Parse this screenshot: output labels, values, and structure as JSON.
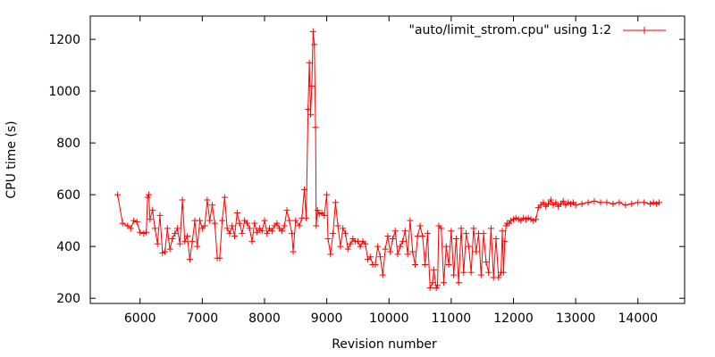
{
  "chart_data": {
    "type": "line",
    "xlabel": "Revision number",
    "ylabel": "CPU time (s)",
    "xlim": [
      5200,
      14750
    ],
    "ylim": [
      180,
      1290
    ],
    "xticks": [
      6000,
      7000,
      8000,
      9000,
      10000,
      11000,
      12000,
      13000,
      14000
    ],
    "yticks": [
      200,
      400,
      600,
      800,
      1000,
      1200
    ],
    "grid": false,
    "legend_position": "top-right",
    "colors": {
      "series": "#ff0000",
      "axis": "#000000",
      "background": "#ffffff"
    },
    "series": [
      {
        "name": "\"auto/limit_strom.cpu\" using 1:2",
        "marker": "plus",
        "points": [
          [
            5640,
            600
          ],
          [
            5720,
            490
          ],
          [
            5800,
            480
          ],
          [
            5850,
            470
          ],
          [
            5900,
            500
          ],
          [
            5950,
            495
          ],
          [
            6000,
            455
          ],
          [
            6060,
            450
          ],
          [
            6100,
            455
          ],
          [
            6120,
            590
          ],
          [
            6140,
            600
          ],
          [
            6160,
            505
          ],
          [
            6200,
            540
          ],
          [
            6240,
            470
          ],
          [
            6280,
            410
          ],
          [
            6320,
            520
          ],
          [
            6360,
            375
          ],
          [
            6400,
            380
          ],
          [
            6440,
            470
          ],
          [
            6480,
            390
          ],
          [
            6520,
            430
          ],
          [
            6560,
            450
          ],
          [
            6600,
            470
          ],
          [
            6640,
            410
          ],
          [
            6680,
            580
          ],
          [
            6720,
            420
          ],
          [
            6760,
            440
          ],
          [
            6800,
            350
          ],
          [
            6840,
            420
          ],
          [
            6880,
            500
          ],
          [
            6920,
            400
          ],
          [
            6960,
            500
          ],
          [
            7000,
            470
          ],
          [
            7040,
            480
          ],
          [
            7080,
            580
          ],
          [
            7120,
            500
          ],
          [
            7160,
            560
          ],
          [
            7200,
            490
          ],
          [
            7240,
            355
          ],
          [
            7280,
            355
          ],
          [
            7320,
            500
          ],
          [
            7360,
            590
          ],
          [
            7400,
            470
          ],
          [
            7440,
            450
          ],
          [
            7480,
            480
          ],
          [
            7520,
            440
          ],
          [
            7560,
            530
          ],
          [
            7600,
            490
          ],
          [
            7640,
            450
          ],
          [
            7680,
            500
          ],
          [
            7720,
            490
          ],
          [
            7760,
            470
          ],
          [
            7800,
            420
          ],
          [
            7840,
            490
          ],
          [
            7880,
            455
          ],
          [
            7920,
            470
          ],
          [
            7960,
            460
          ],
          [
            8000,
            500
          ],
          [
            8040,
            450
          ],
          [
            8080,
            470
          ],
          [
            8120,
            460
          ],
          [
            8160,
            480
          ],
          [
            8200,
            490
          ],
          [
            8240,
            470
          ],
          [
            8280,
            460
          ],
          [
            8320,
            480
          ],
          [
            8360,
            540
          ],
          [
            8400,
            500
          ],
          [
            8440,
            450
          ],
          [
            8460,
            380
          ],
          [
            8500,
            500
          ],
          [
            8560,
            480
          ],
          [
            8600,
            510
          ],
          [
            8640,
            620
          ],
          [
            8670,
            510
          ],
          [
            8700,
            930
          ],
          [
            8720,
            1110
          ],
          [
            8740,
            910
          ],
          [
            8760,
            1020
          ],
          [
            8780,
            1230
          ],
          [
            8800,
            1180
          ],
          [
            8820,
            860
          ],
          [
            8830,
            480
          ],
          [
            8850,
            540
          ],
          [
            8880,
            525
          ],
          [
            8920,
            530
          ],
          [
            8960,
            520
          ],
          [
            9000,
            600
          ],
          [
            9020,
            430
          ],
          [
            9060,
            370
          ],
          [
            9100,
            450
          ],
          [
            9140,
            570
          ],
          [
            9180,
            480
          ],
          [
            9220,
            400
          ],
          [
            9260,
            470
          ],
          [
            9300,
            450
          ],
          [
            9340,
            390
          ],
          [
            9380,
            410
          ],
          [
            9420,
            430
          ],
          [
            9460,
            420
          ],
          [
            9500,
            420
          ],
          [
            9540,
            400
          ],
          [
            9580,
            420
          ],
          [
            9620,
            410
          ],
          [
            9660,
            350
          ],
          [
            9700,
            360
          ],
          [
            9740,
            330
          ],
          [
            9780,
            330
          ],
          [
            9820,
            400
          ],
          [
            9860,
            360
          ],
          [
            9900,
            290
          ],
          [
            9940,
            390
          ],
          [
            9980,
            440
          ],
          [
            10020,
            380
          ],
          [
            10060,
            430
          ],
          [
            10100,
            460
          ],
          [
            10140,
            370
          ],
          [
            10180,
            400
          ],
          [
            10220,
            420
          ],
          [
            10260,
            460
          ],
          [
            10300,
            370
          ],
          [
            10340,
            500
          ],
          [
            10380,
            380
          ],
          [
            10420,
            330
          ],
          [
            10460,
            440
          ],
          [
            10500,
            480
          ],
          [
            10540,
            440
          ],
          [
            10580,
            330
          ],
          [
            10620,
            450
          ],
          [
            10660,
            240
          ],
          [
            10700,
            260
          ],
          [
            10720,
            310
          ],
          [
            10760,
            240
          ],
          [
            10780,
            250
          ],
          [
            10800,
            480
          ],
          [
            10840,
            470
          ],
          [
            10880,
            260
          ],
          [
            10920,
            400
          ],
          [
            10960,
            330
          ],
          [
            11000,
            460
          ],
          [
            11040,
            290
          ],
          [
            11080,
            430
          ],
          [
            11120,
            260
          ],
          [
            11160,
            470
          ],
          [
            11200,
            300
          ],
          [
            11240,
            450
          ],
          [
            11280,
            400
          ],
          [
            11320,
            300
          ],
          [
            11360,
            470
          ],
          [
            11400,
            380
          ],
          [
            11440,
            450
          ],
          [
            11480,
            290
          ],
          [
            11520,
            450
          ],
          [
            11560,
            340
          ],
          [
            11600,
            300
          ],
          [
            11640,
            470
          ],
          [
            11680,
            280
          ],
          [
            11720,
            430
          ],
          [
            11760,
            280
          ],
          [
            11800,
            300
          ],
          [
            11820,
            460
          ],
          [
            11840,
            300
          ],
          [
            11860,
            420
          ],
          [
            11880,
            480
          ],
          [
            11900,
            490
          ],
          [
            11930,
            490
          ],
          [
            11960,
            500
          ],
          [
            12000,
            505
          ],
          [
            12040,
            510
          ],
          [
            12080,
            505
          ],
          [
            12120,
            500
          ],
          [
            12160,
            510
          ],
          [
            12200,
            505
          ],
          [
            12240,
            510
          ],
          [
            12280,
            505
          ],
          [
            12320,
            500
          ],
          [
            12360,
            505
          ],
          [
            12400,
            550
          ],
          [
            12440,
            560
          ],
          [
            12480,
            570
          ],
          [
            12520,
            555
          ],
          [
            12560,
            565
          ],
          [
            12600,
            580
          ],
          [
            12640,
            560
          ],
          [
            12680,
            570
          ],
          [
            12720,
            555
          ],
          [
            12760,
            565
          ],
          [
            12800,
            575
          ],
          [
            12840,
            560
          ],
          [
            12880,
            570
          ],
          [
            12920,
            565
          ],
          [
            12960,
            570
          ],
          [
            13000,
            560
          ],
          [
            13100,
            565
          ],
          [
            13200,
            570
          ],
          [
            13300,
            575
          ],
          [
            13400,
            570
          ],
          [
            13500,
            570
          ],
          [
            13600,
            565
          ],
          [
            13700,
            570
          ],
          [
            13800,
            560
          ],
          [
            13900,
            565
          ],
          [
            14000,
            570
          ],
          [
            14100,
            570
          ],
          [
            14200,
            565
          ],
          [
            14250,
            570
          ],
          [
            14300,
            565
          ],
          [
            14340,
            570
          ]
        ]
      }
    ]
  }
}
